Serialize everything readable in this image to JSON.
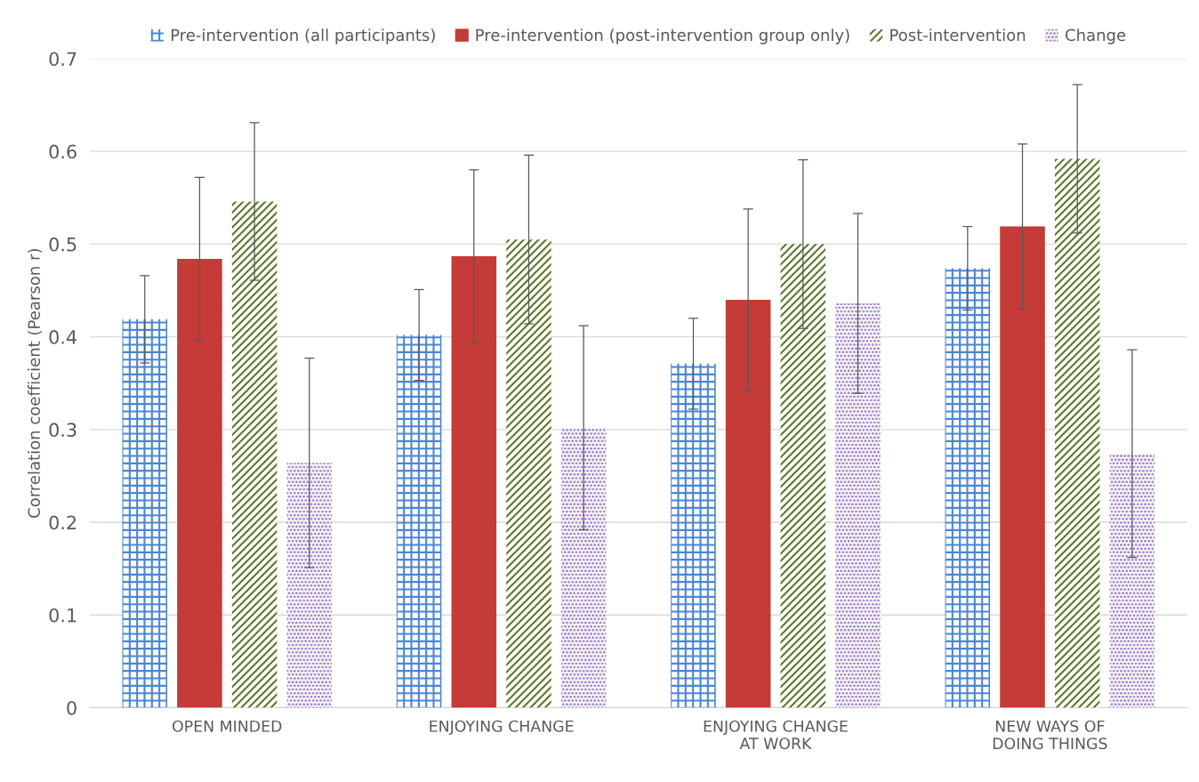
{
  "chart_data": {
    "type": "bar",
    "ylabel": "Correlation coefficient (Pearson r)",
    "categories": [
      "OPEN MINDED",
      "ENJOYING CHANGE",
      "ENJOYING CHANGE\nAT WORK",
      "NEW WAYS OF\nDOING THINGS"
    ],
    "series": [
      {
        "name": "Pre-intervention (all participants)",
        "color": "#4a86d4",
        "values": [
          0.419,
          0.402,
          0.371,
          0.474
        ],
        "errors": [
          0.047,
          0.049,
          0.049,
          0.045
        ]
      },
      {
        "name": "Pre-intervention (post-intervention group only)",
        "color": "#c43b38",
        "values": [
          0.484,
          0.487,
          0.44,
          0.519
        ],
        "errors": [
          0.088,
          0.093,
          0.098,
          0.089
        ]
      },
      {
        "name": "Post-intervention",
        "color": "#5a7a2a",
        "values": [
          0.546,
          0.505,
          0.5,
          0.592
        ],
        "errors": [
          0.085,
          0.091,
          0.091,
          0.08
        ]
      },
      {
        "name": "Change",
        "color": "#8e6bbd",
        "values": [
          0.264,
          0.302,
          0.436,
          0.274
        ],
        "errors": [
          0.113,
          0.11,
          0.097,
          0.112
        ]
      }
    ],
    "ylim": [
      0,
      0.7
    ],
    "yticks": [
      0,
      0.1,
      0.2,
      0.3,
      0.4,
      0.5,
      0.6,
      0.7
    ],
    "grid": "y",
    "legend": "top"
  }
}
